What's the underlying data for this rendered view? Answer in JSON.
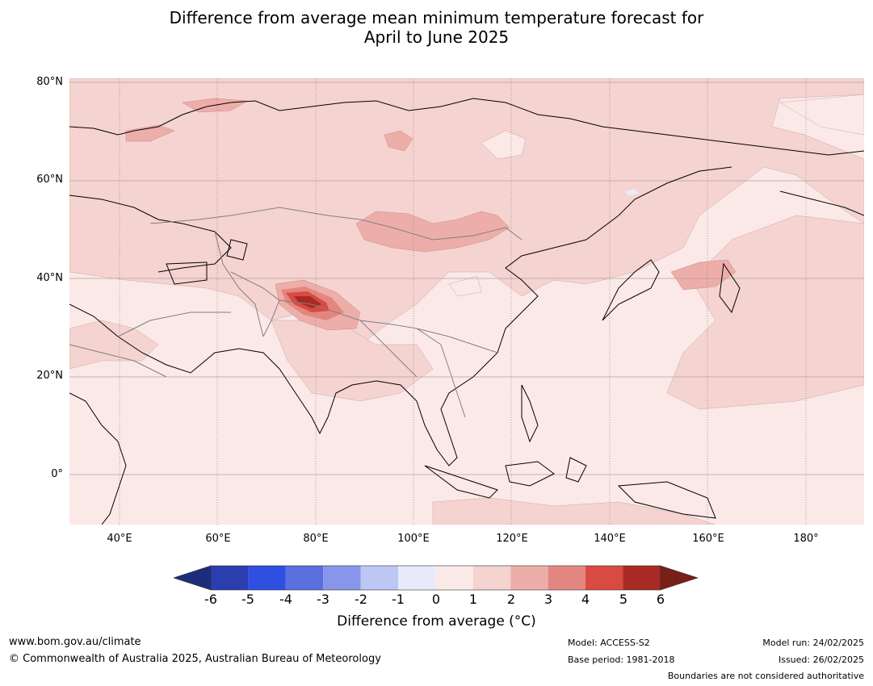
{
  "title_line1": "Difference from average mean minimum temperature forecast for",
  "title_line2": "April to June 2025",
  "map": {
    "lon_range": [
      30,
      191
    ],
    "lat_range": [
      -10,
      81
    ],
    "y_ticks": [
      "80°N",
      "60°N",
      "40°N",
      "20°N",
      "0°"
    ],
    "x_ticks": [
      "40°E",
      "60°E",
      "80°E",
      "100°E",
      "120°E",
      "140°E",
      "160°E",
      "180°"
    ],
    "colors": {
      "land_border": "#000000",
      "country_border": "#808080",
      "grid": "#7a6a6a"
    }
  },
  "colorbar": {
    "ticks": [
      "-6",
      "-5",
      "-4",
      "-3",
      "-2",
      "-1",
      "0",
      "1",
      "2",
      "3",
      "4",
      "5",
      "6"
    ],
    "colors": [
      "#1e2d7a",
      "#2a3eb0",
      "#2f4fe0",
      "#5a6fe0",
      "#8796ea",
      "#bec7f4",
      "#e8eafa",
      "#fbe9e8",
      "#f5d3d0",
      "#edaeaa",
      "#e48680",
      "#d84a42",
      "#a92a24",
      "#7a1e18"
    ],
    "label": "Difference from average (°C)"
  },
  "footer": {
    "url": "www.bom.gov.au/climate",
    "copyright": "© Commonwealth of Australia 2025, Australian Bureau of Meteorology",
    "model": "Model: ACCESS-S2",
    "base_period": "Base period: 1981-2018",
    "model_run": "Model run: 24/02/2025",
    "issued": "Issued: 26/02/2025",
    "boundaries_note": "Boundaries are not considered authoritative"
  }
}
